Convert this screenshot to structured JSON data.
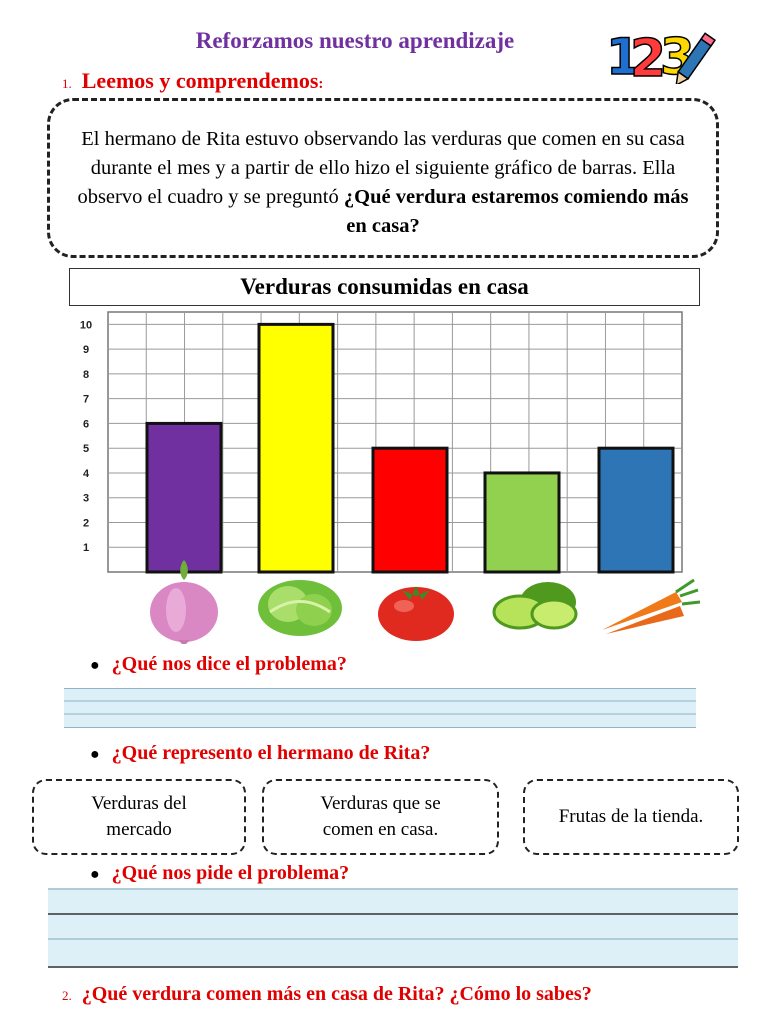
{
  "header": {
    "title": "Reforzamos nuestro aprendizaje",
    "logo_text": "123"
  },
  "section1": {
    "number": "1.",
    "heading": "Leemos y comprendemos",
    "colon": ":"
  },
  "story": {
    "text": "El hermano de Rita estuvo observando las verduras que comen en su casa durante el mes y a partir de ello hizo el siguiente gráfico de barras. Ella observo el cuadro y se preguntó",
    "question_bold": "¿Qué verdura estaremos comiendo más en casa?"
  },
  "chart_data": {
    "type": "bar",
    "title": "Verduras consumidas en casa",
    "categories": [
      "cebolla",
      "lechuga",
      "tomate",
      "limón",
      "zanahoria"
    ],
    "values": [
      6,
      10,
      5,
      4,
      5
    ],
    "bar_colors": [
      "#7030a0",
      "#ffff00",
      "#ff0000",
      "#92d050",
      "#2e75b6"
    ],
    "y_ticks": [
      "1",
      "2",
      "3",
      "4",
      "5",
      "6",
      "7",
      "8",
      "9",
      "10"
    ],
    "ylim": [
      0,
      10.5
    ],
    "grid": true,
    "category_icons": [
      "onion-icon",
      "lettuce-icon",
      "tomato-icon",
      "lime-icon",
      "carrot-icon"
    ]
  },
  "questions": {
    "q1": "¿Qué nos dice el problema?",
    "q2": "¿Qué represento el hermano de Rita?",
    "q3": "¿Qué nos pide el problema?",
    "q4_number": "2.",
    "q4": "¿Qué verdura comen más en casa de Rita? ¿Cómo lo sabes?"
  },
  "options": [
    {
      "line1": "Verduras del",
      "line2": "mercado"
    },
    {
      "line1": "Verduras que se",
      "line2": "comen en casa."
    },
    {
      "line1": "Frutas de  la tienda.",
      "line2": ""
    }
  ]
}
